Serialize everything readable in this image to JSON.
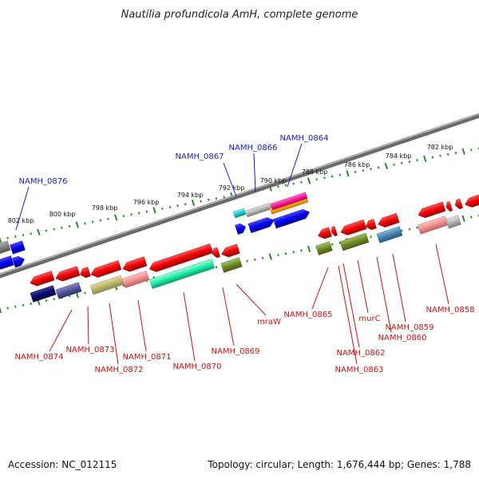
{
  "title": "Nautilia profundicola AmH, complete genome",
  "footer": {
    "accession": "Accession: NC_012115",
    "summary": "Topology: circular; Length: 1,676,444 bp; Genes: 1,788"
  },
  "colors": {
    "backbone": "#888888",
    "tick": "#2a8a2a",
    "label_forward": "#1a1acc",
    "label_reverse": "#cc1111",
    "gene_red": "#ff0000",
    "gene_blue": "#0000ee"
  },
  "ruler_labels": [
    "802 kbp",
    "800 kbp",
    "798 kbp",
    "796 kbp",
    "794 kbp",
    "792 kbp",
    "790 kbp",
    "788 kbp",
    "786 kbp",
    "784 kbp",
    "782 kbp"
  ],
  "gene_labels": {
    "forward": [
      "NAMH_0876",
      "NAMH_0867",
      "NAMH_0866",
      "NAMH_0864"
    ],
    "reverse": [
      "NAMH_0874",
      "NAMH_0873",
      "NAMH_0872",
      "NAMH_0871",
      "NAMH_0870",
      "NAMH_0869",
      "mraW",
      "NAMH_0865",
      "NAMH_0863",
      "NAMH_0862",
      "murC",
      "NAMH_0860",
      "NAMH_0859",
      "NAMH_0858"
    ]
  }
}
